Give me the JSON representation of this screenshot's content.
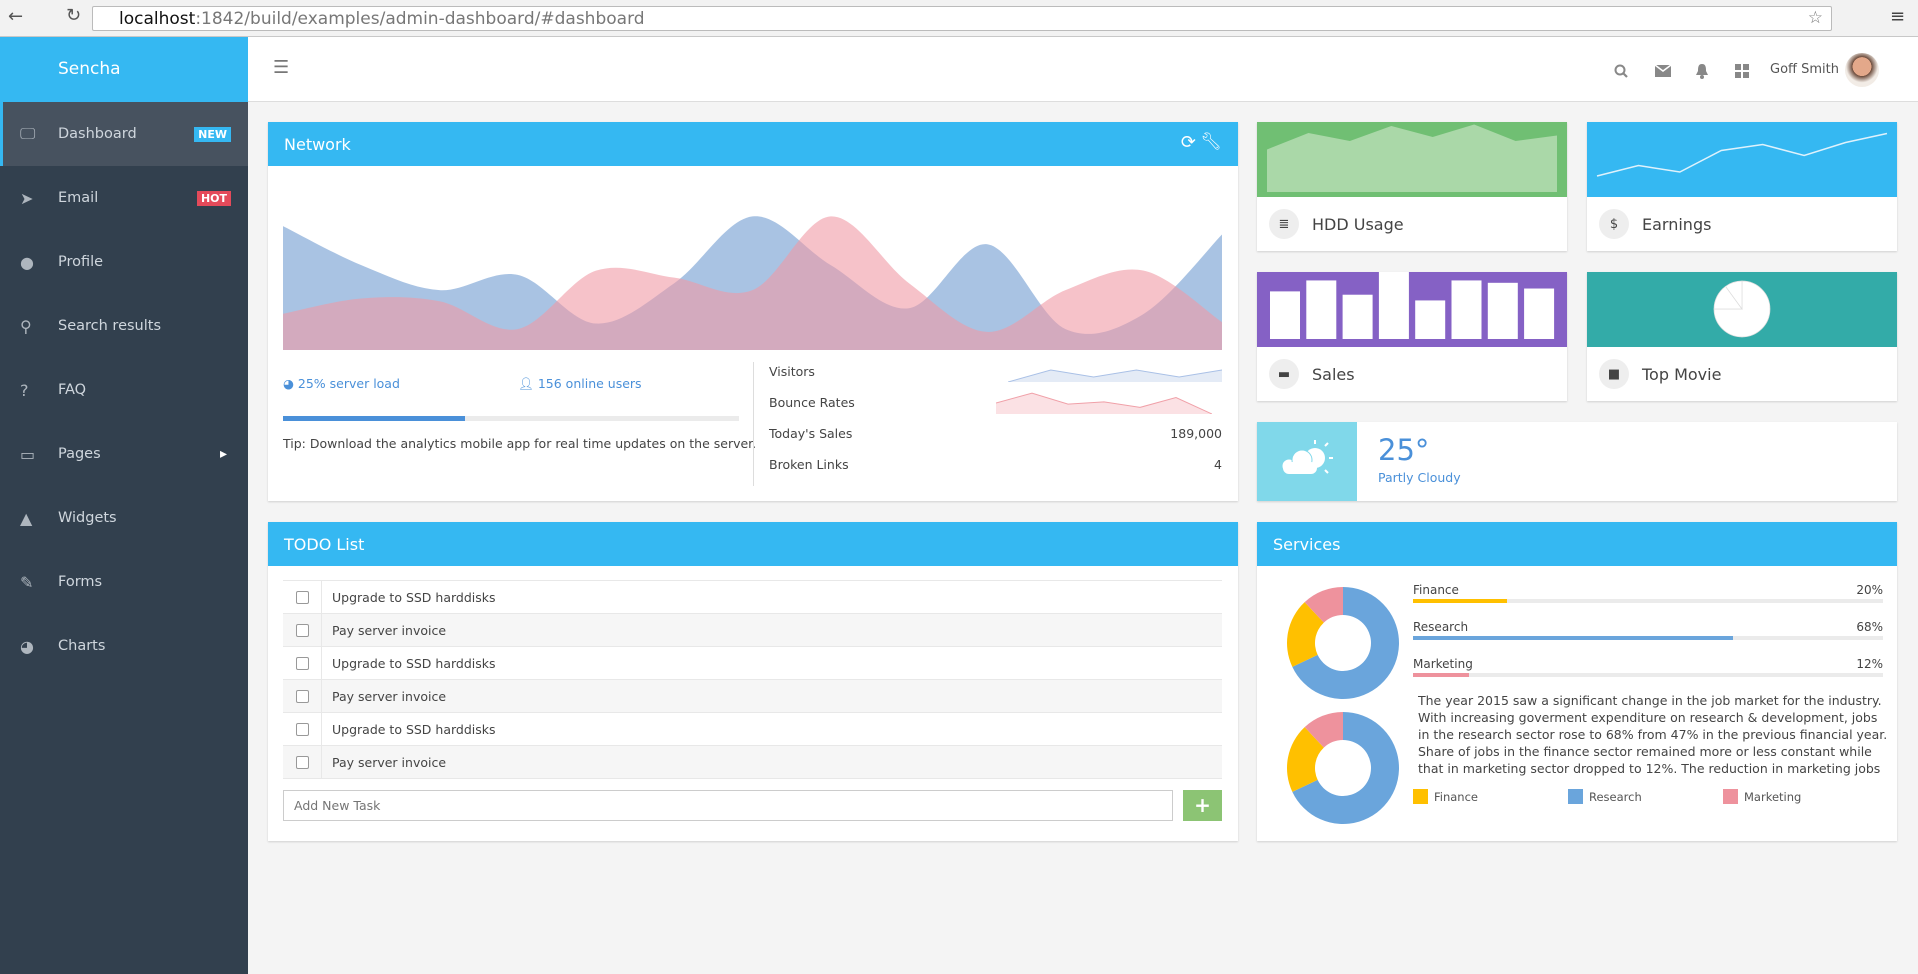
{
  "browser": {
    "url_host": "localhost",
    "url_rest": ":1842/build/examples/admin-dashboard/#dashboard"
  },
  "logo": {
    "text": "Sencha"
  },
  "sidebar": {
    "items": [
      {
        "label": "Dashboard",
        "icon": "desktop-icon",
        "glyph": "🖵",
        "badge": "NEW",
        "badge_color": "#35b8f2",
        "active": true
      },
      {
        "label": "Email",
        "icon": "paper-plane-icon",
        "glyph": "➤",
        "badge": "HOT",
        "badge_color": "#e44a5a"
      },
      {
        "label": "Profile",
        "icon": "user-icon",
        "glyph": "●"
      },
      {
        "label": "Search results",
        "icon": "search-icon",
        "glyph": "⚲"
      },
      {
        "label": "FAQ",
        "icon": "question-icon",
        "glyph": "?"
      },
      {
        "label": "Pages",
        "icon": "book-icon",
        "glyph": "▭",
        "submenu": true
      },
      {
        "label": "Widgets",
        "icon": "flask-icon",
        "glyph": "▲"
      },
      {
        "label": "Forms",
        "icon": "edit-icon",
        "glyph": "✎"
      },
      {
        "label": "Charts",
        "icon": "pie-chart-icon",
        "glyph": "◕"
      }
    ]
  },
  "header": {
    "user_name": "Goff Smith"
  },
  "network": {
    "title": "Network",
    "server_load": "25% server load",
    "online_users": "156 online users",
    "progress": 0.4,
    "tip": "Tip: Download the analytics mobile app for real time updates on the server.",
    "stats": [
      {
        "label": "Visitors",
        "value": ""
      },
      {
        "label": "Bounce Rates",
        "value": ""
      },
      {
        "label": "Today's Sales",
        "value": "189,000"
      },
      {
        "label": "Broken Links",
        "value": "4"
      }
    ],
    "chart": {
      "series_blue": [
        89,
        61,
        43,
        54,
        19,
        48,
        96,
        61,
        30,
        76,
        15,
        26,
        83
      ],
      "series_pink": [
        26,
        37,
        35,
        15,
        57,
        52,
        43,
        96,
        48,
        13,
        43,
        57,
        20
      ],
      "blue": "#6f9bd1",
      "pink": "#f09aa5"
    },
    "visitors_spark": [
      0,
      60,
      25,
      60,
      25,
      60
    ],
    "bounce_spark": [
      50,
      95,
      45,
      55,
      30,
      75,
      0
    ]
  },
  "tiles": [
    {
      "label": "HDD Usage",
      "icon": "database-icon",
      "glyph": "≣",
      "color": "#70bf73",
      "values": [
        85,
        118,
        102,
        132,
        110,
        135,
        102,
        113
      ]
    },
    {
      "label": "Earnings",
      "icon": "dollar-icon",
      "glyph": "$",
      "color": "#35b8f2",
      "values": [
        52,
        73,
        60,
        103,
        115,
        93,
        119,
        137
      ]
    },
    {
      "label": "Sales",
      "icon": "briefcase-icon",
      "glyph": "▬",
      "color": "#8561c5",
      "values": [
        100,
        123,
        93,
        141,
        81,
        123,
        118,
        106
      ]
    },
    {
      "label": "Top Movie",
      "icon": "video-camera-icon",
      "glyph": "■",
      "color": "#33aba8",
      "values": [
        75,
        15,
        10
      ]
    }
  ],
  "weather": {
    "temp": "25°",
    "condition": "Partly Cloudy",
    "color": "#80d8ea"
  },
  "todo": {
    "title": "TODO List",
    "items": [
      "Upgrade to SSD harddisks",
      "Pay server invoice",
      "Upgrade to SSD harddisks",
      "Pay server invoice",
      "Upgrade to SSD harddisks",
      "Pay server invoice"
    ],
    "placeholder": "Add New Task",
    "add_color": "#8cc474"
  },
  "services": {
    "title": "Services",
    "rows": [
      {
        "label": "Finance",
        "pct": "20%",
        "value": 20,
        "color": "#ffc000"
      },
      {
        "label": "Research",
        "pct": "68%",
        "value": 68,
        "color": "#6aa5dc"
      },
      {
        "label": "Marketing",
        "pct": "12%",
        "value": 12,
        "color": "#ee929d"
      }
    ],
    "text": "The year 2015 saw a significant change in the job market for the industry. With increasing goverment expenditure on research & development, jobs in the research sector rose to 68% from 47% in the previous financial year. Share of jobs in the finance sector remained more or less constant while that in marketing sector dropped to 12%. The reduction in marketing jobs is",
    "legend": [
      "Finance",
      "Research",
      "Marketing"
    ]
  }
}
